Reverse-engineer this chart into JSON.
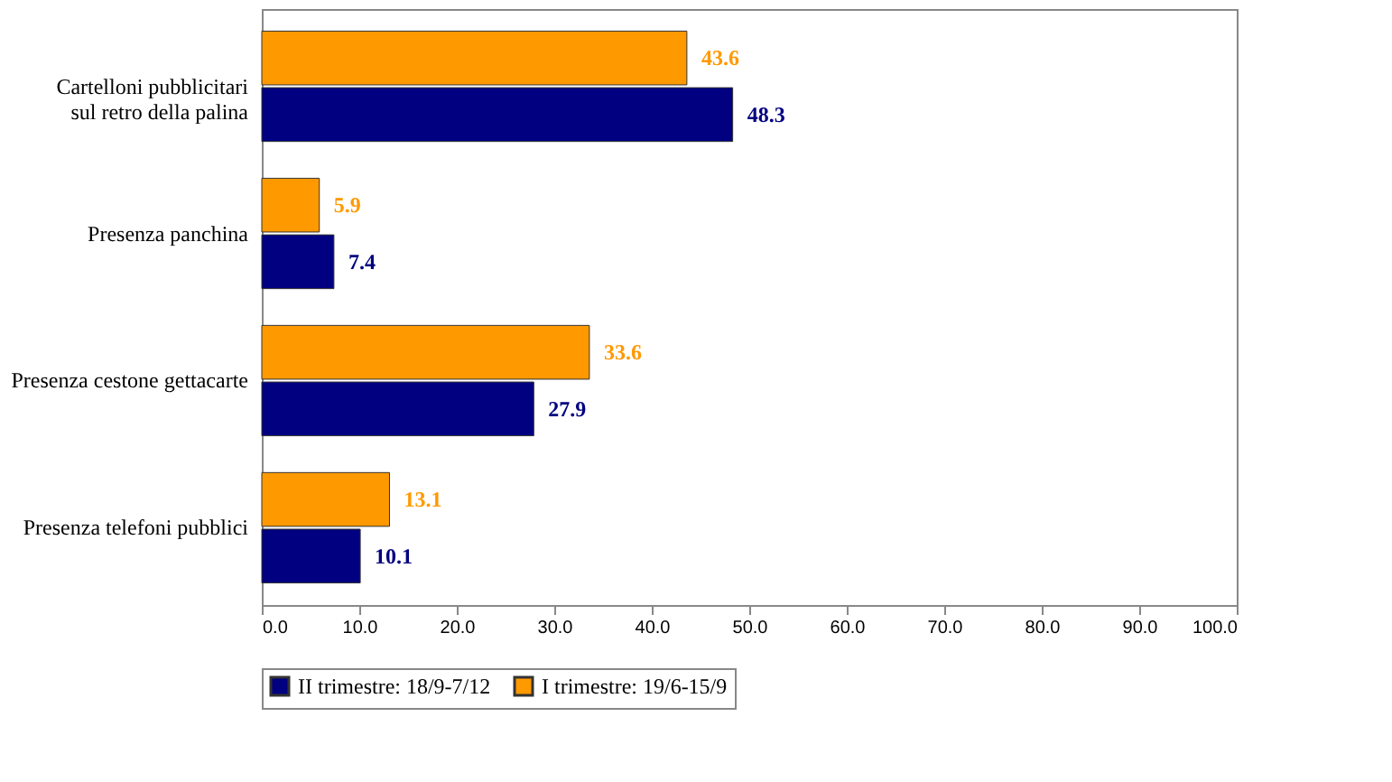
{
  "chart_data": {
    "type": "bar",
    "orientation": "horizontal",
    "categories": [
      "Cartelloni pubblicitari sul retro della palina",
      "Presenza panchina",
      "Presenza cestone gettacarte",
      "Presenza telefoni pubblici"
    ],
    "series": [
      {
        "name": "II trimestre: 18/9-7/12",
        "color": "#000080",
        "values": [
          48.3,
          7.4,
          27.9,
          10.1
        ]
      },
      {
        "name": "I trimestre: 19/6-15/9",
        "color": "#ff9900",
        "values": [
          43.6,
          5.9,
          33.6,
          13.1
        ]
      }
    ],
    "xlim": [
      0,
      100
    ],
    "xticks": [
      {
        "value": 0,
        "label": "0.0"
      },
      {
        "value": 10,
        "label": "10.0"
      },
      {
        "value": 20,
        "label": "20.0"
      },
      {
        "value": 30,
        "label": "30.0"
      },
      {
        "value": 40,
        "label": "40.0"
      },
      {
        "value": 50,
        "label": "50.0"
      },
      {
        "value": 60,
        "label": "60.0"
      },
      {
        "value": 70,
        "label": "70.0"
      },
      {
        "value": 80,
        "label": "80.0"
      },
      {
        "value": 90,
        "label": "90.0"
      },
      {
        "value": 100,
        "label": "100.0"
      }
    ],
    "data_labels": true,
    "grid": false,
    "legend": "bottom"
  }
}
